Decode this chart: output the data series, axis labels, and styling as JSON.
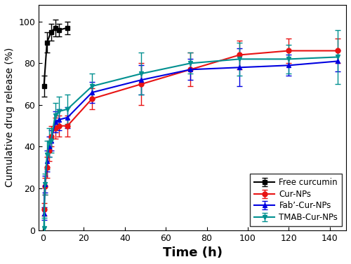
{
  "title": "",
  "xlabel": "Time (h)",
  "ylabel": "Cumulative drug release (%)",
  "xlim": [
    -2,
    148
  ],
  "ylim": [
    0,
    108
  ],
  "yticks": [
    0,
    20,
    40,
    60,
    80,
    100
  ],
  "xticks": [
    0,
    20,
    40,
    60,
    80,
    100,
    120,
    140
  ],
  "free_curcumin": {
    "x": [
      0.5,
      2,
      4,
      6,
      8,
      12
    ],
    "y": [
      69,
      90,
      95,
      97,
      96,
      97
    ],
    "yerr": [
      5,
      5,
      4,
      4,
      3,
      3
    ],
    "color": "#000000",
    "marker": "s",
    "label": "Free curcumin",
    "markersize": 5
  },
  "cur_nps": {
    "x": [
      0.5,
      1,
      2,
      3,
      4,
      6,
      8,
      12,
      24,
      48,
      72,
      96,
      120,
      144
    ],
    "y": [
      10,
      21,
      30,
      38,
      45,
      49,
      50,
      50,
      63,
      70,
      77,
      84,
      86,
      86
    ],
    "yerr": [
      3,
      4,
      5,
      5,
      5,
      5,
      5,
      5,
      5,
      10,
      8,
      7,
      6,
      6
    ],
    "color": "#e81313",
    "marker": "o",
    "label": "Cur-NPs",
    "markersize": 5
  },
  "fab_cur_nps": {
    "x": [
      0.5,
      1,
      2,
      3,
      4,
      6,
      8,
      12,
      24,
      48,
      72,
      96,
      120,
      144
    ],
    "y": [
      8,
      22,
      33,
      40,
      43,
      52,
      53,
      54,
      66,
      72,
      77,
      78,
      79,
      81
    ],
    "yerr": [
      3,
      4,
      5,
      5,
      5,
      5,
      5,
      5,
      5,
      7,
      5,
      9,
      5,
      5
    ],
    "color": "#0000e0",
    "marker": "^",
    "label": "Fab’-Cur-NPs",
    "markersize": 5
  },
  "tmab_cur_nps": {
    "x": [
      0.5,
      1,
      2,
      3,
      4,
      6,
      8,
      12,
      24,
      48,
      72,
      96,
      120,
      144
    ],
    "y": [
      1,
      22,
      36,
      42,
      43,
      55,
      57,
      58,
      69,
      75,
      80,
      82,
      82,
      83
    ],
    "yerr": [
      5,
      5,
      7,
      7,
      6,
      6,
      7,
      7,
      6,
      10,
      5,
      8,
      7,
      13
    ],
    "color": "#009090",
    "marker": "v",
    "label": "TMAB-Cur-NPs",
    "markersize": 5
  },
  "legend_loc": "lower right",
  "linewidth": 1.5,
  "capsize": 3,
  "elinewidth": 1.0,
  "xlabel_fontsize": 13,
  "ylabel_fontsize": 10,
  "tick_fontsize": 9,
  "legend_fontsize": 8.5
}
